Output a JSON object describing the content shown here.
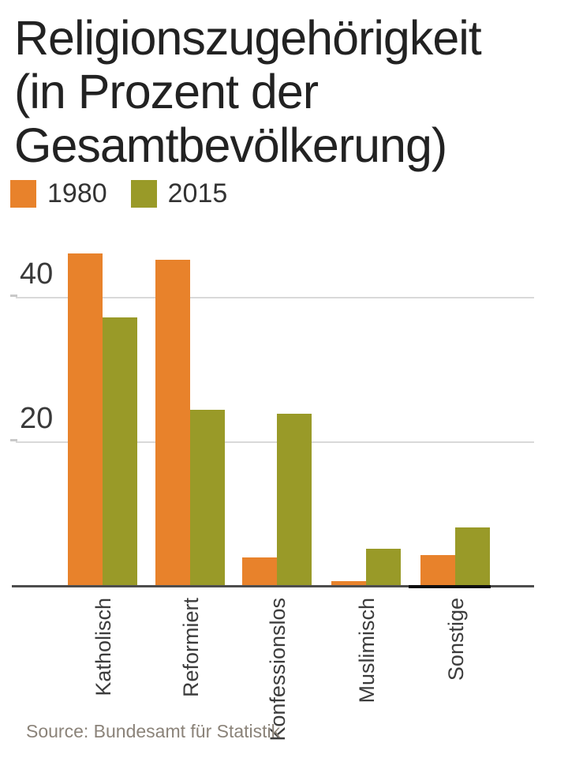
{
  "title": {
    "lines": [
      "Religionszugehörigkeit",
      "(in Prozent der",
      "Gesamtbevölkerung)"
    ]
  },
  "legend": {
    "items": [
      {
        "label": "1980",
        "color": "#E8822B"
      },
      {
        "label": "2015",
        "color": "#999A28"
      }
    ]
  },
  "source": "Source: Bundesamt für Statistik",
  "colors": {
    "series_1980": "#E8822B",
    "series_2015": "#999A28",
    "gridline": "#D9D9D9",
    "axis": "#4D4D4D",
    "axis_dark_segment": "#0D0D0D",
    "title_text": "#222222",
    "tick_text": "#3A3A3A",
    "category_text": "#3C3C3C",
    "source_text": "#8B8379"
  },
  "chart_data": {
    "type": "bar",
    "title": "Religionszugehörigkeit (in Prozent der Gesamtbevölkerung)",
    "categories": [
      "Katholisch",
      "Reformiert",
      "Konfessionslos",
      "Muslimisch",
      "Sonstige"
    ],
    "series": [
      {
        "name": "1980",
        "color": "#E8822B",
        "values": [
          46.2,
          45.3,
          3.9,
          0.7,
          4.3
        ]
      },
      {
        "name": "2015",
        "color": "#999A28",
        "values": [
          37.3,
          24.5,
          23.9,
          5.1,
          8.1
        ]
      }
    ],
    "xlabel": "",
    "ylabel": "",
    "ylim": [
      0,
      48
    ],
    "yticks": [
      20,
      40
    ],
    "grid": true,
    "legend_position": "top-left",
    "source": "Source: Bundesamt für Statistik"
  }
}
